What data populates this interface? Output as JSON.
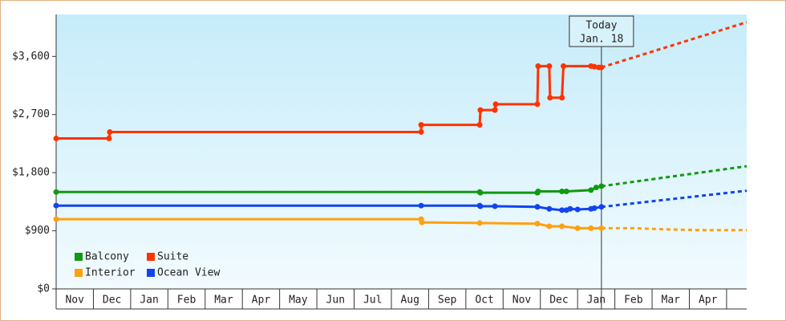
{
  "chart_data": {
    "type": "line",
    "categories": [
      "Nov",
      "Dec",
      "Jan",
      "Feb",
      "Mar",
      "Apr",
      "May",
      "Jun",
      "Jul",
      "Aug",
      "Sep",
      "Oct",
      "Nov",
      "Dec",
      "Jan",
      "Feb",
      "Mar",
      "Apr"
    ],
    "xlim": [
      0,
      18.54
    ],
    "ylim": [
      0,
      4250
    ],
    "yticks": [
      {
        "value": 0,
        "label": "$0"
      },
      {
        "value": 900,
        "label": "$900"
      },
      {
        "value": 1800,
        "label": "$1,800"
      },
      {
        "value": 2700,
        "label": "$2,700"
      },
      {
        "value": 3600,
        "label": "$3,600"
      }
    ],
    "today": {
      "x": 14.64,
      "label": [
        "Today",
        "Jan. 18"
      ]
    },
    "legend": "lower left",
    "series": [
      {
        "name": "Balcony",
        "color": "#119911",
        "x": [
          0,
          11.37,
          11.39,
          12.92,
          12.94,
          13.58,
          13.7,
          14.36,
          14.5,
          14.64
        ],
        "values": [
          1500,
          1500,
          1490,
          1490,
          1510,
          1510,
          1510,
          1530,
          1570,
          1590
        ],
        "projection_x": [
          14.64,
          18.54
        ],
        "projection_values": [
          1590,
          1900
        ]
      },
      {
        "name": "Suite",
        "color": "#ff3300",
        "x": [
          0,
          1.42,
          1.44,
          9.8,
          9.8,
          11.37,
          11.39,
          11.78,
          11.8,
          12.92,
          12.94,
          13.24,
          13.26,
          13.58,
          13.62,
          14.36,
          14.45,
          14.57,
          14.64
        ],
        "values": [
          2330,
          2330,
          2430,
          2430,
          2540,
          2540,
          2770,
          2770,
          2860,
          2860,
          3450,
          3450,
          2960,
          2960,
          3450,
          3450,
          3440,
          3430,
          3430
        ],
        "projection_x": [
          14.64,
          18.54
        ],
        "projection_values": [
          3430,
          4130
        ]
      },
      {
        "name": "Interior",
        "color": "#ffa010",
        "x": [
          0,
          9.8,
          9.82,
          11.37,
          12.92,
          13.24,
          13.58,
          14.0,
          14.36,
          14.64
        ],
        "values": [
          1080,
          1080,
          1030,
          1020,
          1010,
          970,
          970,
          940,
          940,
          940
        ],
        "projection_x": [
          14.64,
          15.5,
          16.5,
          17.3,
          18.54
        ],
        "projection_values": [
          940,
          940,
          920,
          910,
          910
        ]
      },
      {
        "name": "Ocean View",
        "color": "#1144ee",
        "x": [
          0,
          9.8,
          11.37,
          11.39,
          11.78,
          12.92,
          13.24,
          13.58,
          13.7,
          13.8,
          14.0,
          14.36,
          14.45,
          14.64
        ],
        "values": [
          1290,
          1290,
          1290,
          1280,
          1280,
          1270,
          1240,
          1220,
          1220,
          1240,
          1230,
          1240,
          1250,
          1270
        ],
        "projection_x": [
          14.64,
          18.54
        ],
        "projection_values": [
          1270,
          1520
        ]
      }
    ]
  }
}
